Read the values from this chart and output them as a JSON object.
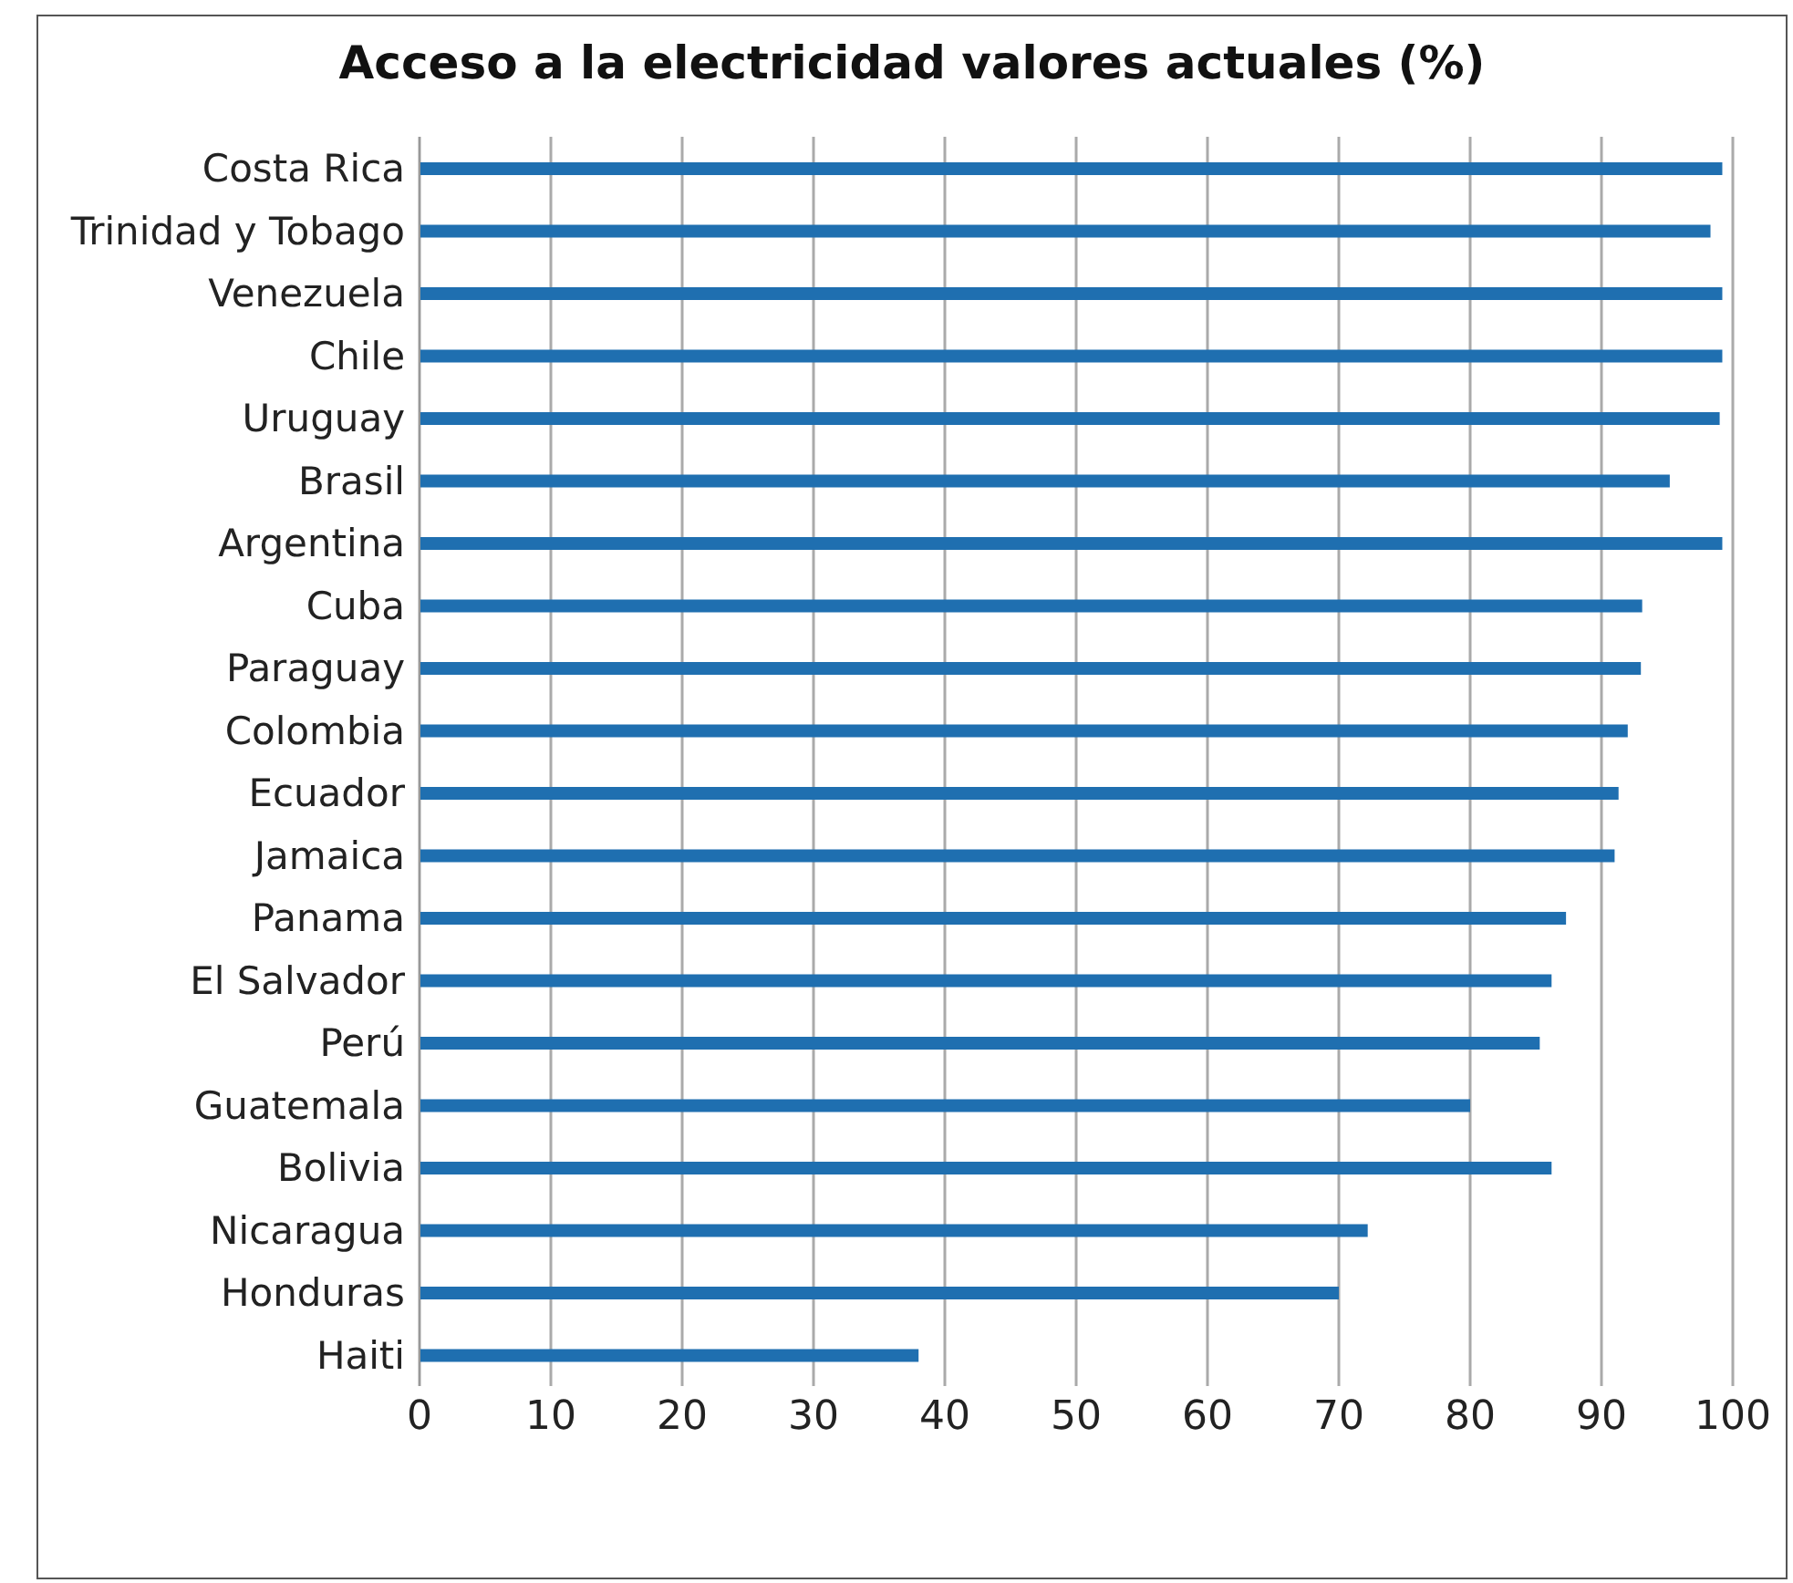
{
  "chart_data": {
    "type": "bar",
    "orientation": "horizontal",
    "title": "Acceso a la electricidad valores actuales  (%)",
    "categories": [
      "Costa Rica",
      "Trinidad y Tobago",
      "Venezuela",
      "Chile",
      "Uruguay",
      "Brasil",
      "Argentina",
      "Cuba",
      "Paraguay",
      "Colombia",
      "Ecuador",
      "Jamaica",
      "Panama",
      "El Salvador",
      "Perú",
      "Guatemala",
      "Bolivia",
      "Nicaragua",
      "Honduras",
      "Haiti"
    ],
    "values": [
      99.2,
      98.3,
      99.2,
      99.2,
      99,
      95.2,
      99.2,
      93.1,
      93,
      92,
      91.3,
      91,
      87.3,
      86.2,
      85.3,
      80,
      86.2,
      72.2,
      70,
      38
    ],
    "color": "#1f6fb0",
    "xlim": [
      0,
      100
    ],
    "xticks": [
      0,
      10,
      20,
      30,
      40,
      50,
      60,
      70,
      80,
      90,
      100
    ],
    "grid": "x",
    "legend": false
  }
}
